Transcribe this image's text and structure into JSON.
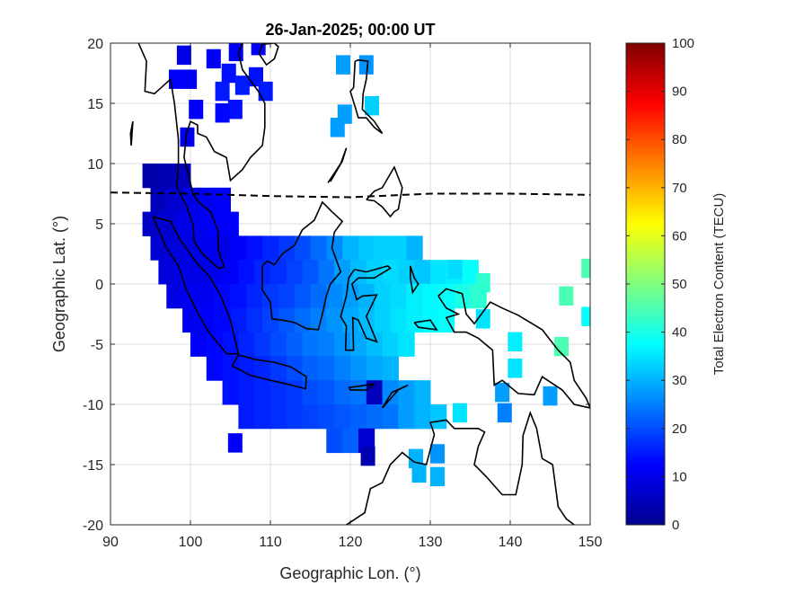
{
  "chart_data": {
    "type": "heatmap",
    "title": "26-Jan-2025; 00:00 UT",
    "xlabel": "Geographic Lon. (°)",
    "ylabel": "Geographic Lat. (°)",
    "xlim": [
      90,
      150
    ],
    "ylim": [
      -20,
      20
    ],
    "xticks": [
      "90",
      "100",
      "110",
      "120",
      "130",
      "140",
      "150"
    ],
    "yticks": [
      "20",
      "15",
      "10",
      "5",
      "0",
      "-5",
      "-10",
      "-15",
      "-20"
    ],
    "grid": true,
    "colorbar": {
      "label": "Total Electron Content (TECU)",
      "colormap": "jet",
      "clim": [
        0,
        100
      ],
      "ticks": [
        "0",
        "10",
        "20",
        "30",
        "40",
        "50",
        "60",
        "70",
        "80",
        "90",
        "100"
      ]
    },
    "grid_rows": [
      {
        "lat": 9,
        "lon_start": 95,
        "tec": [
          4,
          5,
          6
        ]
      },
      {
        "lat": 7,
        "lon_start": 96,
        "tec": [
          6,
          8,
          10,
          11,
          12
        ]
      },
      {
        "lat": 5,
        "lon_start": 95,
        "tec": [
          7,
          8,
          10,
          11,
          12,
          12
        ]
      },
      {
        "lat": 3,
        "lon_start": 96,
        "tec": [
          8,
          9,
          10,
          11,
          10,
          12,
          14,
          16,
          18,
          20,
          23,
          26,
          30,
          32,
          33,
          33,
          30
        ]
      },
      {
        "lat": 1,
        "lon_start": 97,
        "tec": [
          9,
          10,
          10,
          11,
          12,
          14,
          16,
          17,
          19,
          21,
          24,
          28,
          31,
          33,
          34,
          33,
          32,
          35,
          36,
          38
        ]
      },
      {
        "lat": -1,
        "lon_start": 98,
        "tec": [
          10,
          11,
          11,
          13,
          14,
          16,
          18,
          19,
          21,
          23,
          26,
          28,
          30,
          33,
          34,
          36,
          37,
          38,
          40,
          42
        ]
      },
      {
        "lat": -3,
        "lon_start": 100,
        "tec": [
          11,
          12,
          13,
          15,
          17,
          19,
          21,
          23,
          25,
          27,
          29,
          31,
          33,
          35,
          36,
          37,
          38
        ]
      },
      {
        "lat": -5,
        "lon_start": 101,
        "tec": [
          12,
          13,
          14,
          16,
          18,
          20,
          22,
          24,
          25,
          27,
          29,
          31,
          33,
          35
        ]
      },
      {
        "lat": -7,
        "lon_start": 103,
        "tec": [
          13,
          14,
          15,
          16,
          18,
          20,
          22,
          23,
          25,
          27,
          29,
          30
        ]
      },
      {
        "lat": -9,
        "lon_start": 105,
        "tec": [
          14,
          15,
          16,
          17,
          18,
          20,
          21,
          23,
          24,
          6,
          26,
          28,
          30
        ]
      },
      {
        "lat": -11,
        "lon_start": 107,
        "tec": [
          15,
          16,
          17,
          18,
          19,
          20,
          21,
          22,
          23,
          24,
          28,
          30,
          32
        ]
      },
      {
        "lat": -13,
        "lon_start": 118,
        "tec": [
          20,
          22,
          8
        ]
      }
    ],
    "points": [
      [
        99.2,
        19,
        10
      ],
      [
        99.9,
        17,
        12
      ],
      [
        98.2,
        17,
        12
      ],
      [
        102.9,
        18.7,
        12
      ],
      [
        105.7,
        19.3,
        12
      ],
      [
        108.5,
        19.8,
        12
      ],
      [
        104.8,
        17.5,
        14
      ],
      [
        106.5,
        16.5,
        15
      ],
      [
        108.2,
        17.2,
        14
      ],
      [
        109.4,
        16,
        15
      ],
      [
        100.7,
        14.5,
        12
      ],
      [
        104,
        16,
        15
      ],
      [
        105.6,
        14.5,
        14
      ],
      [
        104,
        14.2,
        13
      ],
      [
        99.6,
        12.2,
        11
      ],
      [
        119.1,
        18.2,
        28
      ],
      [
        122,
        18.2,
        27
      ],
      [
        119.3,
        14.1,
        28
      ],
      [
        122.7,
        14.8,
        33
      ],
      [
        118.4,
        13,
        28
      ],
      [
        149.8,
        1.3,
        45
      ],
      [
        147,
        -1,
        45
      ],
      [
        149.8,
        -2.7,
        38
      ],
      [
        146.4,
        -5.2,
        45
      ],
      [
        140.6,
        -4.8,
        36
      ],
      [
        140.6,
        -7,
        35
      ],
      [
        136.6,
        -2.9,
        35
      ],
      [
        136.6,
        0.1,
        42
      ],
      [
        139,
        -9,
        28
      ],
      [
        139.3,
        -10.7,
        25
      ],
      [
        145,
        -9.3,
        28
      ],
      [
        133.7,
        -10.7,
        35
      ],
      [
        130.9,
        -14.1,
        27
      ],
      [
        128.6,
        -15.7,
        30
      ],
      [
        130.9,
        -16,
        30
      ],
      [
        133.1,
        1.2,
        34
      ],
      [
        105.6,
        -13.2,
        12
      ],
      [
        122.2,
        -14.3,
        5
      ],
      [
        128.2,
        -14.5,
        30
      ]
    ],
    "magnetic_equator": [
      [
        90,
        7.6
      ],
      [
        100,
        7.5
      ],
      [
        110,
        7.3
      ],
      [
        120,
        7.2
      ],
      [
        130,
        7.5
      ],
      [
        140,
        7.5
      ],
      [
        150,
        7.4
      ]
    ],
    "coastlines": [
      [
        [
          93.5,
          20
        ],
        [
          94.5,
          18.5
        ],
        [
          94.3,
          16
        ],
        [
          95.5,
          15.8
        ],
        [
          97.5,
          17
        ],
        [
          98,
          15
        ],
        [
          98.5,
          12
        ],
        [
          98.5,
          10
        ],
        [
          98.3,
          8
        ],
        [
          99.5,
          6.5
        ],
        [
          100.3,
          5
        ],
        [
          100.5,
          3.5
        ],
        [
          101.5,
          2.5
        ],
        [
          103.5,
          1.3
        ],
        [
          104.2,
          1.4
        ],
        [
          103.5,
          2.8
        ],
        [
          103.4,
          4.5
        ],
        [
          102.5,
          6
        ],
        [
          101,
          6.8
        ],
        [
          100.3,
          7.5
        ],
        [
          99.8,
          9
        ],
        [
          99.2,
          10.5
        ],
        [
          99.5,
          12.5
        ],
        [
          100,
          13.5
        ],
        [
          100.9,
          13.2
        ],
        [
          100.9,
          12.5
        ],
        [
          102,
          12.2
        ],
        [
          103,
          11
        ],
        [
          104.5,
          10.5
        ],
        [
          105,
          8.6
        ],
        [
          106.5,
          9.5
        ],
        [
          107.5,
          10.5
        ],
        [
          109,
          11.5
        ],
        [
          109.3,
          13
        ],
        [
          109.3,
          15
        ],
        [
          108.5,
          16
        ],
        [
          106.5,
          17.8
        ],
        [
          106,
          19.2
        ],
        [
          106.5,
          20
        ]
      ],
      [
        [
          108.6,
          19.1
        ],
        [
          109.5,
          18.2
        ],
        [
          110.5,
          18.7
        ],
        [
          111,
          19.7
        ],
        [
          110.5,
          20
        ],
        [
          109,
          19.9
        ],
        [
          108.6,
          19.1
        ]
      ],
      [
        [
          95.3,
          5.6
        ],
        [
          97.5,
          5.2
        ],
        [
          98.7,
          3.7
        ],
        [
          100.5,
          2
        ],
        [
          102.5,
          0.5
        ],
        [
          103.8,
          -1
        ],
        [
          105,
          -3
        ],
        [
          106,
          -5.8
        ],
        [
          104.5,
          -5.8
        ],
        [
          102.3,
          -4
        ],
        [
          101,
          -2.5
        ],
        [
          99.5,
          -0.5
        ],
        [
          98.5,
          1.5
        ],
        [
          97,
          3
        ],
        [
          95.3,
          5.6
        ]
      ],
      [
        [
          105.2,
          -6.8
        ],
        [
          106,
          -5.9
        ],
        [
          108.3,
          -6.3
        ],
        [
          110.5,
          -6.5
        ],
        [
          112.6,
          -6.9
        ],
        [
          114.5,
          -7.7
        ],
        [
          114.4,
          -8.7
        ],
        [
          112,
          -8.3
        ],
        [
          110,
          -8
        ],
        [
          107.5,
          -7.6
        ],
        [
          105.2,
          -6.8
        ]
      ],
      [
        [
          109,
          1.5
        ],
        [
          109.6,
          1.9
        ],
        [
          110.5,
          1.6
        ],
        [
          111.5,
          2.5
        ],
        [
          113,
          3.2
        ],
        [
          114,
          4.5
        ],
        [
          115.5,
          5.3
        ],
        [
          116.5,
          6.8
        ],
        [
          117.7,
          6
        ],
        [
          119,
          5.2
        ],
        [
          118,
          4.3
        ],
        [
          117.7,
          3
        ],
        [
          118.8,
          1
        ],
        [
          117.5,
          0
        ],
        [
          117,
          -1
        ],
        [
          116.5,
          -2.5
        ],
        [
          116,
          -3.8
        ],
        [
          114.5,
          -3.7
        ],
        [
          113,
          -3.2
        ],
        [
          111.5,
          -3
        ],
        [
          110.2,
          -2.9
        ],
        [
          110,
          -1.5
        ],
        [
          109,
          -0.5
        ],
        [
          109,
          1.5
        ]
      ],
      [
        [
          120.5,
          1.2
        ],
        [
          122,
          1
        ],
        [
          124.7,
          1.5
        ],
        [
          125,
          1.3
        ],
        [
          123,
          0.5
        ],
        [
          121,
          0.5
        ],
        [
          120.2,
          0
        ],
        [
          120.8,
          -1.3
        ],
        [
          121.5,
          -1
        ],
        [
          123.3,
          -0.9
        ],
        [
          122,
          -2.7
        ],
        [
          123.3,
          -4.8
        ],
        [
          122,
          -4.5
        ],
        [
          121,
          -3
        ],
        [
          120.3,
          -2.8
        ],
        [
          120.4,
          -5.5
        ],
        [
          119.4,
          -5.5
        ],
        [
          119.5,
          -3.5
        ],
        [
          118.8,
          -2.7
        ],
        [
          119.5,
          -1
        ],
        [
          119.8,
          0.5
        ],
        [
          120.5,
          1.2
        ]
      ],
      [
        [
          120.6,
          18.5
        ],
        [
          121,
          18.6
        ],
        [
          122.2,
          18.5
        ],
        [
          122,
          17
        ],
        [
          121.6,
          15.8
        ],
        [
          121.5,
          14.5
        ],
        [
          123,
          13.5
        ],
        [
          124,
          12.5
        ],
        [
          123,
          13
        ],
        [
          122,
          13.8
        ],
        [
          121,
          13.8
        ],
        [
          120.7,
          14.5
        ],
        [
          120,
          16
        ],
        [
          120.4,
          16.3
        ],
        [
          120.6,
          18.5
        ]
      ],
      [
        [
          122,
          7
        ],
        [
          123,
          7.7
        ],
        [
          124,
          8
        ],
        [
          125.5,
          9.7
        ],
        [
          126.5,
          8
        ],
        [
          126,
          6.2
        ],
        [
          125.5,
          6
        ],
        [
          125,
          5.6
        ],
        [
          124,
          6.4
        ],
        [
          123,
          6.9
        ],
        [
          122,
          7
        ]
      ],
      [
        [
          117.2,
          8.4
        ],
        [
          118.8,
          10
        ],
        [
          119.5,
          11.3
        ],
        [
          119,
          10.2
        ],
        [
          117.5,
          8.5
        ]
      ],
      [
        [
          131,
          -1
        ],
        [
          132,
          -0.4
        ],
        [
          134,
          -0.8
        ],
        [
          134.5,
          -2.5
        ],
        [
          135.5,
          -3.3
        ],
        [
          137.5,
          -1.5
        ],
        [
          139,
          -2
        ],
        [
          141,
          -2.6
        ],
        [
          144,
          -3.8
        ],
        [
          146,
          -5.5
        ],
        [
          147.5,
          -6.5
        ],
        [
          148,
          -8
        ],
        [
          149.5,
          -9.5
        ],
        [
          150,
          -10.3
        ],
        [
          148,
          -10
        ],
        [
          146.5,
          -8.8
        ],
        [
          144,
          -7.7
        ],
        [
          143,
          -9.2
        ],
        [
          141,
          -9.1
        ],
        [
          139,
          -8
        ],
        [
          138,
          -8.4
        ],
        [
          137.8,
          -5.5
        ],
        [
          136,
          -4.5
        ],
        [
          134.5,
          -4
        ],
        [
          133,
          -4
        ],
        [
          132,
          -2.8
        ],
        [
          133.5,
          -2.5
        ],
        [
          132,
          -2
        ],
        [
          131,
          -1
        ]
      ],
      [
        [
          119.5,
          -20
        ],
        [
          121.8,
          -19
        ],
        [
          122.5,
          -17
        ],
        [
          124,
          -16.5
        ],
        [
          125,
          -15
        ],
        [
          126.5,
          -14
        ],
        [
          128,
          -14.8
        ],
        [
          129.5,
          -15
        ],
        [
          130.5,
          -12.5
        ],
        [
          130,
          -11.5
        ],
        [
          132,
          -11.3
        ],
        [
          133,
          -12
        ],
        [
          136,
          -12
        ],
        [
          136.8,
          -12.3
        ],
        [
          136,
          -13.5
        ],
        [
          135.5,
          -15
        ],
        [
          137,
          -16
        ],
        [
          139,
          -17.5
        ],
        [
          140.7,
          -17.5
        ],
        [
          141.5,
          -15
        ],
        [
          141.6,
          -12.6
        ],
        [
          142.5,
          -10.7
        ],
        [
          143.3,
          -12
        ],
        [
          144,
          -14.5
        ],
        [
          145.3,
          -15
        ],
        [
          146,
          -18.5
        ],
        [
          147,
          -19.5
        ],
        [
          148,
          -20
        ]
      ],
      [
        [
          124,
          -10.3
        ],
        [
          125.2,
          -9
        ],
        [
          127.2,
          -8.4
        ],
        [
          126,
          -8.8
        ],
        [
          124,
          -10.3
        ]
      ],
      [
        [
          119.8,
          -8.6
        ],
        [
          121,
          -8.5
        ],
        [
          123,
          -8.3
        ],
        [
          122,
          -8.8
        ],
        [
          120,
          -8.8
        ],
        [
          119.8,
          -8.6
        ]
      ],
      [
        [
          127.5,
          1.5
        ],
        [
          128,
          0.5
        ],
        [
          128.5,
          0
        ],
        [
          127.8,
          -0.7
        ],
        [
          127.5,
          0.5
        ],
        [
          127.5,
          1.5
        ]
      ],
      [
        [
          128,
          -3.2
        ],
        [
          130,
          -3
        ],
        [
          130.8,
          -3.8
        ],
        [
          128.5,
          -3.6
        ],
        [
          128,
          -3.2
        ]
      ],
      [
        [
          92.8,
          13.5
        ],
        [
          92.6,
          11.5
        ],
        [
          92.5,
          12.5
        ],
        [
          92.8,
          13.5
        ]
      ]
    ]
  }
}
